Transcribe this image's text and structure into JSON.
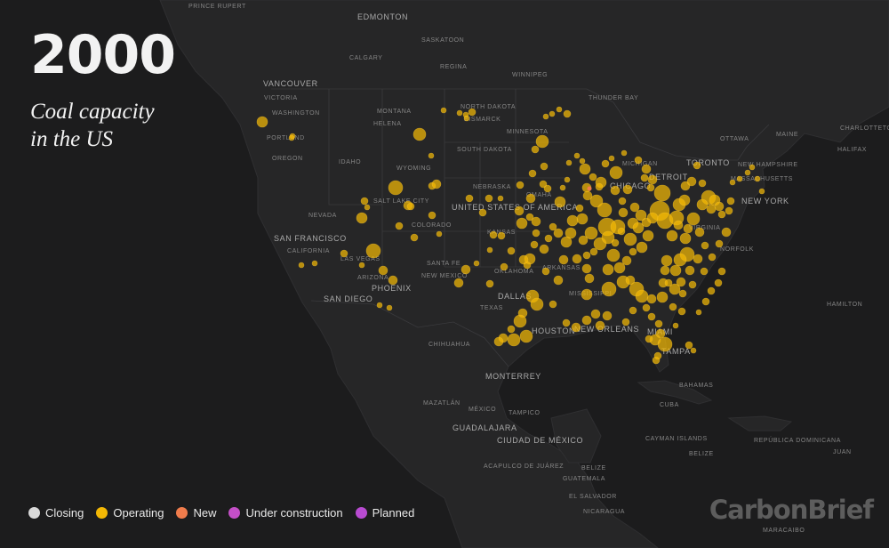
{
  "title": {
    "year": "2000",
    "subtitle_line1": "Coal capacity",
    "subtitle_line2": "in the US"
  },
  "legend": [
    {
      "label": "Closing",
      "color": "#d9d9d9"
    },
    {
      "label": "Operating",
      "color": "#f3b805"
    },
    {
      "label": "New",
      "color": "#f07c4c"
    },
    {
      "label": "Under construction",
      "color": "#c44fc7"
    },
    {
      "label": "Planned",
      "color": "#b84bd1"
    }
  ],
  "brand": "CarbonBrief",
  "colors": {
    "land": "#262627",
    "water": "#1c1c1d",
    "plant": "#f3b805",
    "new": "#f07c4c"
  },
  "places": [
    "PRINCE RUPERT",
    "EDMONTON",
    "SASKATOON",
    "CALGARY",
    "REGINA",
    "WINNIPEG",
    "VANCOUVER",
    "VICTORIA",
    "WASHINGTON",
    "MONTANA",
    "HELENA",
    "NORTH DAKOTA",
    "BISMARCK",
    "THUNDER BAY",
    "MINNESOTA",
    "PORTLAND",
    "OREGON",
    "IDAHO",
    "SOUTH DAKOTA",
    "WYOMING",
    "NEBRASKA",
    "SALT LAKE CITY",
    "UNITED STATES OF AMERICA",
    "OMAHA",
    "NEVADA",
    "COLORADO",
    "KANSAS",
    "SAN FRANCISCO",
    "CALIFORNIA",
    "LAS VEGAS",
    "SANTA FE",
    "ARIZONA",
    "NEW MEXICO",
    "PHOENIX",
    "SAN DIEGO",
    "OKLAHOMA",
    "ARKANSAS",
    "DALLAS",
    "TEXAS",
    "MISSISSIPPI",
    "HOUSTON",
    "NEW ORLEANS",
    "CHIHUAHUA",
    "MONTERREY",
    "MAZATLÁN",
    "MÉXICO",
    "TAMPICO",
    "GUADALAJARA",
    "CIUDAD DE MÉXICO",
    "ACAPULCO DE JUÁREZ",
    "GUATEMALA",
    "BELIZE",
    "EL SALVADOR",
    "NICARAGUA",
    "MIAMI",
    "TAMPA",
    "BAHAMAS",
    "CUBA",
    "CAYMAN ISLANDS",
    "BELIZE",
    "REPÚBLICA DOMINICANA",
    "JUAN",
    "MARACAIBO",
    "TORONTO",
    "OTTAWA",
    "CHICAGO",
    "DETROIT",
    "VIRGINIA",
    "NORFOLK",
    "NEW YORK",
    "MASSACHUSETTS",
    "NEW HAMPSHIRE",
    "MAINE",
    "CHARLOTTETOWN",
    "HALIFAX",
    "HAMILTON",
    "MICHIGAN"
  ],
  "plants": [
    [
      295,
      137,
      6
    ],
    [
      329,
      153,
      3
    ],
    [
      328,
      155,
      3
    ],
    [
      410,
      226,
      4
    ],
    [
      407,
      245,
      6
    ],
    [
      413,
      233,
      3
    ],
    [
      420,
      282,
      8
    ],
    [
      445,
      211,
      8
    ],
    [
      459,
      231,
      5
    ],
    [
      462,
      232,
      4
    ],
    [
      449,
      254,
      4
    ],
    [
      466,
      267,
      4
    ],
    [
      486,
      209,
      4
    ],
    [
      491,
      207,
      5
    ],
    [
      486,
      242,
      4
    ],
    [
      494,
      263,
      3
    ],
    [
      387,
      285,
      4
    ],
    [
      407,
      298,
      3
    ],
    [
      354,
      296,
      3
    ],
    [
      339,
      298,
      3
    ],
    [
      431,
      304,
      5
    ],
    [
      442,
      315,
      5
    ],
    [
      427,
      343,
      3
    ],
    [
      438,
      346,
      3
    ],
    [
      472,
      151,
      7
    ],
    [
      499,
      124,
      3
    ],
    [
      517,
      127,
      3
    ],
    [
      531,
      126,
      4
    ],
    [
      524,
      129,
      3
    ],
    [
      525,
      133,
      3
    ],
    [
      485,
      175,
      3
    ],
    [
      528,
      223,
      4
    ],
    [
      550,
      223,
      4
    ],
    [
      563,
      223,
      3
    ],
    [
      587,
      251,
      6
    ],
    [
      584,
      237,
      5
    ],
    [
      585,
      208,
      4
    ],
    [
      597,
      223,
      5
    ],
    [
      599,
      195,
      4
    ],
    [
      610,
      159,
      7
    ],
    [
      614,
      131,
      3
    ],
    [
      621,
      128,
      3
    ],
    [
      629,
      123,
      3
    ],
    [
      638,
      128,
      4
    ],
    [
      602,
      168,
      4
    ],
    [
      612,
      187,
      4
    ],
    [
      611,
      207,
      4
    ],
    [
      616,
      212,
      4
    ],
    [
      596,
      244,
      4
    ],
    [
      601,
      275,
      4
    ],
    [
      612,
      280,
      5
    ],
    [
      596,
      291,
      6
    ],
    [
      614,
      305,
      4
    ],
    [
      599,
      333,
      7
    ],
    [
      604,
      342,
      7
    ],
    [
      588,
      352,
      5
    ],
    [
      585,
      361,
      7
    ],
    [
      575,
      370,
      4
    ],
    [
      578,
      382,
      7
    ],
    [
      566,
      380,
      5
    ],
    [
      592,
      378,
      7
    ],
    [
      561,
      384,
      5
    ],
    [
      551,
      319,
      4
    ],
    [
      516,
      318,
      5
    ],
    [
      524,
      303,
      5
    ],
    [
      536,
      296,
      3
    ],
    [
      630,
      227,
      6
    ],
    [
      633,
      211,
      3
    ],
    [
      638,
      202,
      3
    ],
    [
      640,
      183,
      3
    ],
    [
      649,
      175,
      3
    ],
    [
      655,
      181,
      3
    ],
    [
      658,
      190,
      6
    ],
    [
      660,
      211,
      5
    ],
    [
      652,
      234,
      4
    ],
    [
      655,
      246,
      6
    ],
    [
      671,
      226,
      7
    ],
    [
      680,
      236,
      8
    ],
    [
      683,
      255,
      10
    ],
    [
      675,
      274,
      7
    ],
    [
      665,
      262,
      7
    ],
    [
      684,
      267,
      7
    ],
    [
      695,
      255,
      8
    ],
    [
      712,
      251,
      6
    ],
    [
      709,
      269,
      7
    ],
    [
      718,
      256,
      6
    ],
    [
      722,
      278,
      6
    ],
    [
      727,
      250,
      5
    ],
    [
      742,
      237,
      11
    ],
    [
      745,
      217,
      9
    ],
    [
      748,
      248,
      9
    ],
    [
      761,
      245,
      8
    ],
    [
      764,
      230,
      7
    ],
    [
      770,
      225,
      6
    ],
    [
      771,
      209,
      5
    ],
    [
      778,
      204,
      5
    ],
    [
      790,
      206,
      4
    ],
    [
      784,
      186,
      4
    ],
    [
      797,
      222,
      8
    ],
    [
      804,
      225,
      6
    ],
    [
      809,
      232,
      5
    ],
    [
      812,
      241,
      4
    ],
    [
      800,
      235,
      5
    ],
    [
      790,
      230,
      6
    ],
    [
      780,
      246,
      7
    ],
    [
      771,
      268,
      6
    ],
    [
      773,
      286,
      8
    ],
    [
      765,
      292,
      7
    ],
    [
      760,
      304,
      6
    ],
    [
      750,
      293,
      6
    ],
    [
      748,
      304,
      5
    ],
    [
      746,
      318,
      5
    ],
    [
      759,
      325,
      6
    ],
    [
      768,
      330,
      4
    ],
    [
      779,
      320,
      4
    ],
    [
      792,
      305,
      4
    ],
    [
      801,
      289,
      4
    ],
    [
      809,
      274,
      4
    ],
    [
      817,
      261,
      5
    ],
    [
      820,
      237,
      4
    ],
    [
      822,
      226,
      4
    ],
    [
      824,
      205,
      3
    ],
    [
      832,
      201,
      3
    ],
    [
      841,
      194,
      3
    ],
    [
      846,
      188,
      3
    ],
    [
      857,
      215,
      3
    ],
    [
      852,
      201,
      3
    ],
    [
      734,
      245,
      6
    ],
    [
      714,
      233,
      5
    ],
    [
      706,
      213,
      5
    ],
    [
      693,
      194,
      7
    ],
    [
      676,
      205,
      6
    ],
    [
      681,
      184,
      4
    ],
    [
      688,
      178,
      3
    ],
    [
      702,
      172,
      3
    ],
    [
      718,
      180,
      4
    ],
    [
      727,
      190,
      5
    ],
    [
      734,
      202,
      5
    ],
    [
      725,
      200,
      4
    ],
    [
      732,
      211,
      4
    ],
    [
      712,
      283,
      4
    ],
    [
      705,
      293,
      5
    ],
    [
      697,
      301,
      6
    ],
    [
      690,
      287,
      7
    ],
    [
      684,
      303,
      6
    ],
    [
      685,
      325,
      8
    ],
    [
      701,
      317,
      7
    ],
    [
      709,
      315,
      5
    ],
    [
      716,
      325,
      8
    ],
    [
      722,
      333,
      7
    ],
    [
      727,
      346,
      4
    ],
    [
      733,
      336,
      5
    ],
    [
      733,
      356,
      4
    ],
    [
      712,
      349,
      4
    ],
    [
      704,
      362,
      4
    ],
    [
      683,
      355,
      5
    ],
    [
      670,
      353,
      5
    ],
    [
      675,
      366,
      5
    ],
    [
      660,
      360,
      5
    ],
    [
      660,
      331,
      6
    ],
    [
      663,
      313,
      5
    ],
    [
      660,
      302,
      5
    ],
    [
      649,
      291,
      5
    ],
    [
      634,
      292,
      5
    ],
    [
      628,
      315,
      5
    ],
    [
      622,
      342,
      4
    ],
    [
      637,
      363,
      4
    ],
    [
      648,
      368,
      5
    ],
    [
      741,
      364,
      4
    ],
    [
      743,
      375,
      5
    ],
    [
      737,
      382,
      6
    ],
    [
      748,
      387,
      8
    ],
    [
      730,
      381,
      4
    ],
    [
      738,
      405,
      4
    ],
    [
      740,
      400,
      4
    ],
    [
      775,
      388,
      4
    ],
    [
      780,
      394,
      3
    ],
    [
      760,
      366,
      3
    ],
    [
      767,
      350,
      4
    ],
    [
      786,
      351,
      3
    ],
    [
      794,
      339,
      4
    ],
    [
      800,
      327,
      4
    ],
    [
      808,
      318,
      4
    ],
    [
      812,
      305,
      4
    ],
    [
      642,
      262,
      6
    ],
    [
      637,
      272,
      6
    ],
    [
      644,
      248,
      6
    ],
    [
      622,
      255,
      4
    ],
    [
      628,
      262,
      5
    ],
    [
      617,
      268,
      4
    ],
    [
      603,
      249,
      5
    ],
    [
      603,
      262,
      4
    ],
    [
      567,
      300,
      4
    ],
    [
      564,
      265,
      4
    ],
    [
      575,
      282,
      4
    ],
    [
      589,
      292,
      5
    ],
    [
      593,
      298,
      4
    ],
    [
      551,
      281,
      3
    ],
    [
      555,
      264,
      4
    ],
    [
      543,
      239,
      4
    ],
    [
      661,
      220,
      5
    ],
    [
      667,
      199,
      4
    ],
    [
      674,
      210,
      4
    ],
    [
      692,
      214,
      5
    ],
    [
      700,
      226,
      4
    ],
    [
      701,
      239,
      5
    ],
    [
      721,
      242,
      6
    ],
    [
      729,
      265,
      6
    ],
    [
      756,
      265,
      6
    ],
    [
      763,
      253,
      5
    ],
    [
      774,
      257,
      5
    ],
    [
      787,
      261,
      5
    ],
    [
      793,
      276,
      4
    ],
    [
      785,
      291,
      5
    ],
    [
      776,
      304,
      5
    ],
    [
      766,
      317,
      5
    ],
    [
      752,
      318,
      4
    ],
    [
      745,
      334,
      6
    ],
    [
      757,
      345,
      4
    ],
    [
      692,
      273,
      4
    ],
    [
      699,
      260,
      4
    ],
    [
      656,
      270,
      5
    ],
    [
      668,
      283,
      4
    ],
    [
      660,
      287,
      4
    ]
  ]
}
